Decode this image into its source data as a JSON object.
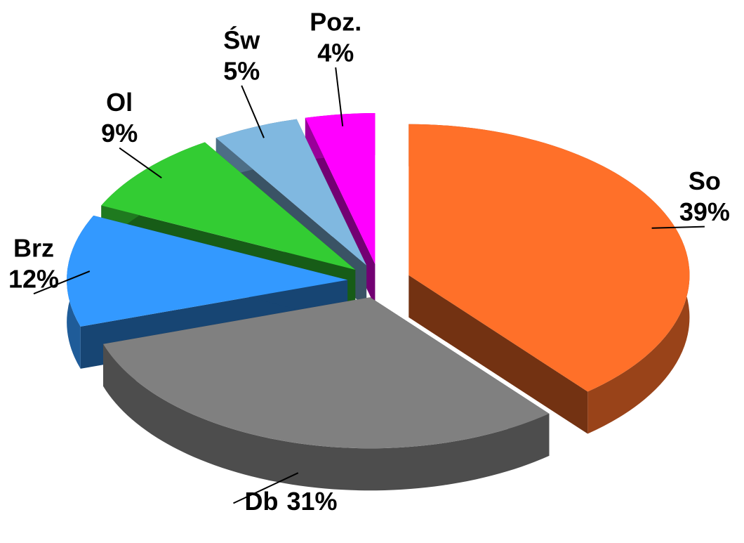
{
  "chart_data": {
    "type": "pie",
    "categories": [
      "So",
      "Db",
      "Brz",
      "Ol",
      "Św",
      "Poz."
    ],
    "values": [
      39,
      31,
      12,
      9,
      5,
      4
    ],
    "value_labels": [
      "39%",
      "31%",
      "12%",
      "9%",
      "5%",
      "4%"
    ],
    "colors": [
      "#ff7029",
      "#808080",
      "#3399ff",
      "#33cc33",
      "#80b8e0",
      "#ff00ff"
    ]
  }
}
